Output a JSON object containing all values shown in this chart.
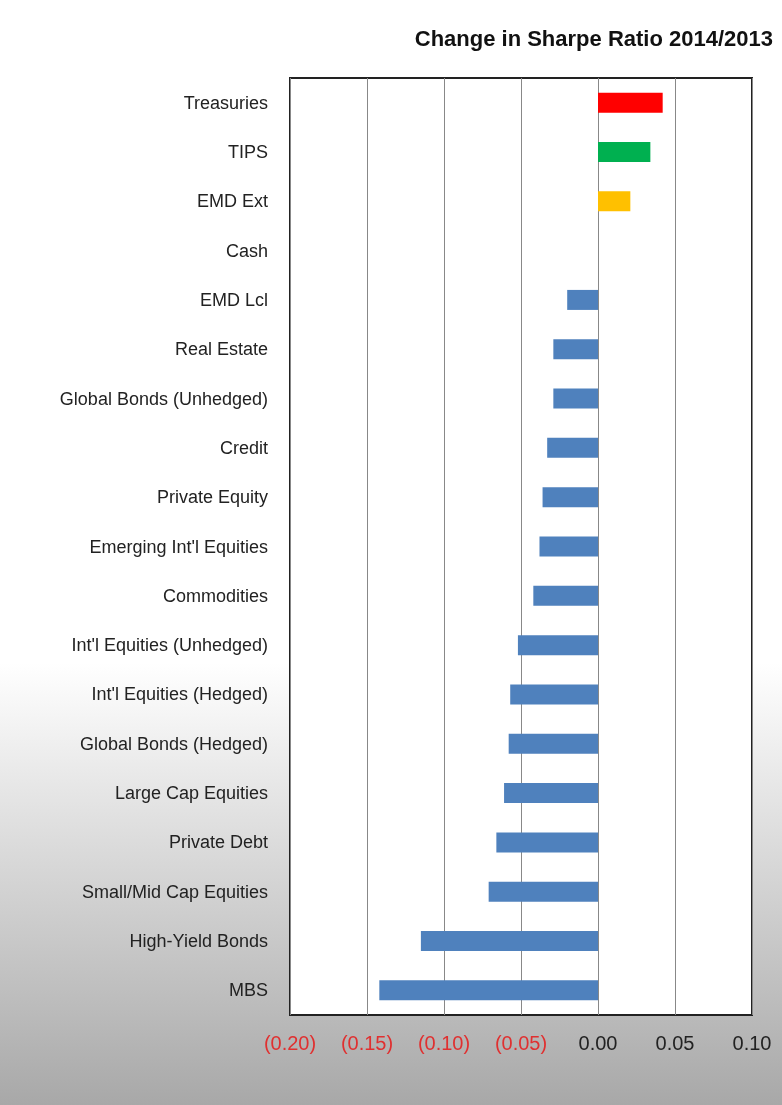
{
  "chart_data": {
    "type": "bar",
    "orientation": "horizontal",
    "title": "Change in Sharpe Ratio 2014/2013",
    "categories": [
      "Treasuries",
      "TIPS",
      "EMD Ext",
      "Cash",
      "EMD Lcl",
      "Real Estate",
      "Global Bonds (Unhedged)",
      "Credit",
      "Private Equity",
      "Emerging Int'l Equities",
      "Commodities",
      "Int'l Equities (Unhedged)",
      "Int'l Equities (Hedged)",
      "Global Bonds (Hedged)",
      "Large Cap Equities",
      "Private Debt",
      "Small/Mid Cap Equities",
      "High-Yield Bonds",
      "MBS"
    ],
    "values": [
      0.042,
      0.034,
      0.021,
      0,
      -0.02,
      -0.029,
      -0.029,
      -0.033,
      -0.036,
      -0.038,
      -0.042,
      -0.052,
      -0.057,
      -0.058,
      -0.061,
      -0.066,
      -0.071,
      -0.115,
      -0.142
    ],
    "colors": [
      "#ff0000",
      "#00b050",
      "#ffc000",
      "#4f81bd",
      "#4f81bd",
      "#4f81bd",
      "#4f81bd",
      "#4f81bd",
      "#4f81bd",
      "#4f81bd",
      "#4f81bd",
      "#4f81bd",
      "#4f81bd",
      "#4f81bd",
      "#4f81bd",
      "#4f81bd",
      "#4f81bd",
      "#4f81bd",
      "#4f81bd"
    ],
    "xlim": [
      -0.2,
      0.1
    ],
    "xticks": [
      {
        "value": -0.2,
        "label": "(0.20)"
      },
      {
        "value": -0.15,
        "label": "(0.15)"
      },
      {
        "value": -0.1,
        "label": "(0.10)"
      },
      {
        "value": -0.05,
        "label": "(0.05)"
      },
      {
        "value": 0,
        "label": "0.00"
      },
      {
        "value": 0.05,
        "label": "0.05"
      },
      {
        "value": 0.1,
        "label": "0.10"
      }
    ],
    "grid": "x"
  }
}
